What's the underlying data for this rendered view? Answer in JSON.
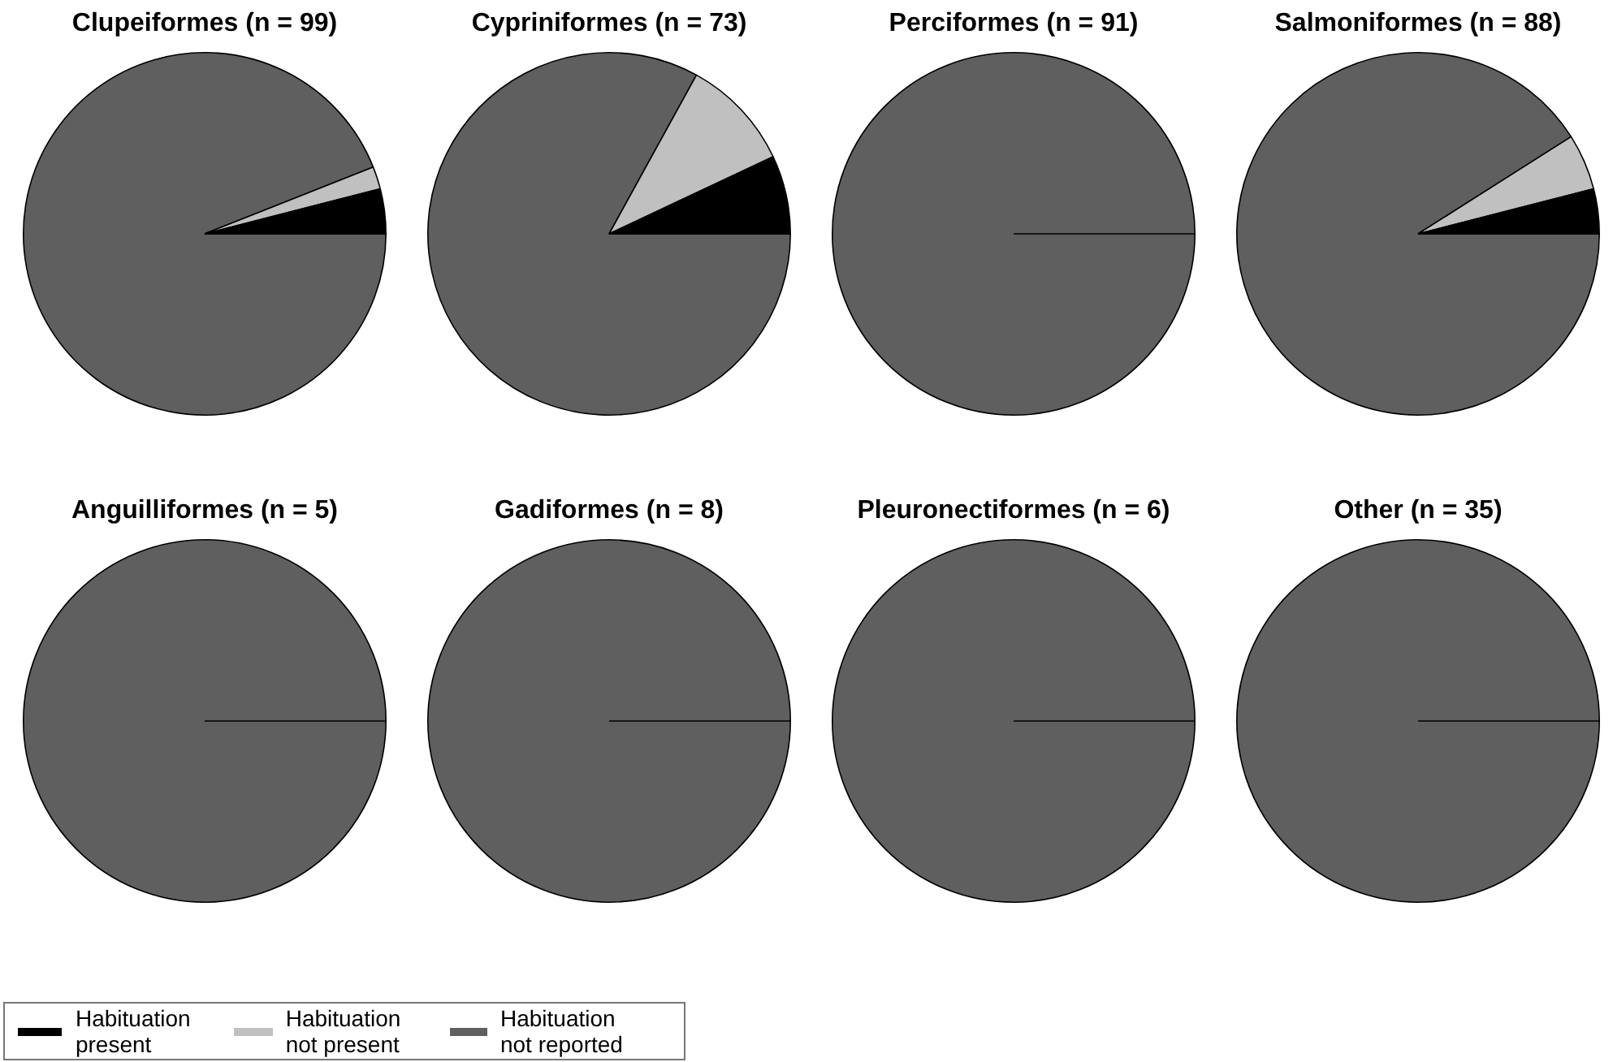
{
  "chart_data": [
    {
      "type": "pie",
      "title": "Clupeiformes (n = 99)",
      "categories": [
        "Habituation present",
        "Habituation not present",
        "Habituation not reported"
      ],
      "values": [
        4,
        2,
        94
      ],
      "colors": [
        "#000000",
        "#c0c0c0",
        "#5f5f5f"
      ],
      "legend": "bottom"
    },
    {
      "type": "pie",
      "title": "Cypriniformes (n = 73)",
      "categories": [
        null,
        null,
        null
      ],
      "values": [
        7,
        10,
        83
      ],
      "colors": [
        "#000000",
        "#c0c0c0",
        "#5f5f5f"
      ]
    },
    {
      "type": "pie",
      "title": "Perciformes (n = 91)",
      "categories": [
        null,
        null,
        null
      ],
      "values": [
        0,
        0,
        100
      ],
      "colors": [
        "#000000",
        "#c0c0c0",
        "#5f5f5f"
      ]
    },
    {
      "type": "pie",
      "title": "Salmoniformes (n = 88)",
      "categories": [
        null,
        null,
        null
      ],
      "values": [
        4,
        5,
        91
      ],
      "colors": [
        "#000000",
        "#c0c0c0",
        "#5f5f5f"
      ]
    },
    {
      "type": "pie",
      "title": "Anguilliformes (n = 5)",
      "categories": [
        null,
        null,
        null
      ],
      "values": [
        0,
        0,
        100
      ],
      "colors": [
        "#000000",
        "#c0c0c0",
        "#5f5f5f"
      ]
    },
    {
      "type": "pie",
      "title": "Gadiformes (n = 8)",
      "categories": [
        null,
        null,
        null
      ],
      "values": [
        0,
        0,
        100
      ],
      "colors": [
        "#000000",
        "#c0c0c0",
        "#5f5f5f"
      ]
    },
    {
      "type": "pie",
      "title": "Pleuronectiformes (n = 6)",
      "categories": [
        null,
        null,
        null
      ],
      "values": [
        0,
        0,
        100
      ],
      "colors": [
        "#000000",
        "#c0c0c0",
        "#5f5f5f"
      ]
    },
    {
      "type": "pie",
      "title": "Other (n = 35)",
      "categories": [
        null,
        null,
        null
      ],
      "values": [
        0,
        0,
        100
      ],
      "colors": [
        "#000000",
        "#c0c0c0",
        "#5f5f5f"
      ]
    }
  ]
}
